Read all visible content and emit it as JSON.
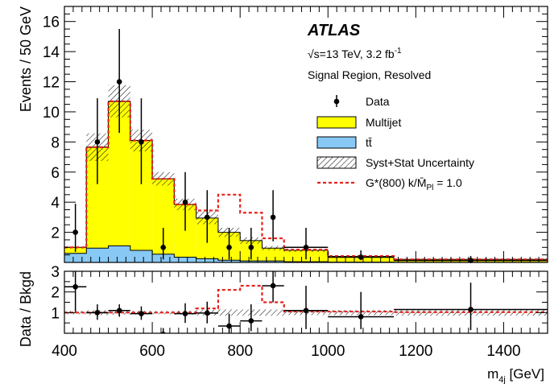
{
  "chart_data": [
    {
      "panel": "main",
      "type": "histogram",
      "ylabel": "Events / 50 GeV",
      "xlim": [
        400,
        1500
      ],
      "ylim": [
        0,
        17
      ],
      "y_ticks": [
        "2",
        "4",
        "6",
        "8",
        "10",
        "12",
        "14",
        "16"
      ],
      "x_ticks": [
        "400",
        "600",
        "800",
        "1000",
        "1200",
        "1400"
      ],
      "bin_edges": [
        400,
        450,
        500,
        550,
        600,
        650,
        700,
        750,
        800,
        850,
        900,
        1000,
        1150,
        1500
      ],
      "series": [
        {
          "name": "Multijet",
          "color": "#ffff00",
          "stacked": true,
          "values": [
            0.4,
            6.7,
            9.6,
            7.3,
            5.0,
            3.5,
            2.7,
            1.85,
            1.35,
            0.85,
            0.75,
            0.38,
            0.19
          ]
        },
        {
          "name": "tt̄",
          "color": "#87c8f5",
          "stacked": true,
          "values": [
            0.6,
            0.95,
            1.1,
            0.8,
            0.55,
            0.35,
            0.25,
            0.15,
            0.1,
            0.1,
            0.05,
            0.02,
            0.01
          ]
        },
        {
          "name": "G*(800) k/M̄Pl = 1.0",
          "color": "#e8221c",
          "style": "dashed",
          "values": [
            1.0,
            7.65,
            10.7,
            8.1,
            5.55,
            3.85,
            3.45,
            4.5,
            3.3,
            1.6,
            0.85,
            0.42,
            0.2
          ]
        }
      ],
      "data": {
        "name": "Data",
        "x": [
          425,
          475,
          525,
          575,
          625,
          675,
          725,
          775,
          825,
          875,
          950,
          1075,
          1325
        ],
        "y": [
          2,
          8,
          12,
          8,
          1,
          4,
          3,
          1,
          1,
          3,
          1,
          0.35,
          0.13
        ],
        "err_up": [
          1.9,
          2.9,
          3.5,
          2.9,
          1.3,
          2.0,
          1.8,
          1.3,
          1.3,
          1.8,
          1.3,
          0.45,
          0.3
        ],
        "err_down": [
          1.3,
          2.8,
          3.4,
          2.8,
          0.8,
          1.9,
          1.7,
          0.8,
          0.8,
          1.6,
          0.8,
          0.2,
          0.1
        ]
      },
      "uncertainty_rel": [
        0.08,
        0.12,
        0.1,
        0.09,
        0.08,
        0.1,
        0.14,
        0.15,
        0.15,
        0.15,
        0.12,
        0.12,
        0.15
      ],
      "legend": [
        "Data",
        "Multijet",
        "tt̄",
        "Syst+Stat Uncertainty",
        "G*(800) k/M̄Pl = 1.0"
      ],
      "legend_position": "top-right",
      "annotations": [
        "ATLAS",
        "√s=13 TeV, 3.2 fb-1",
        "Signal Region, Resolved"
      ]
    },
    {
      "panel": "ratio",
      "type": "scatter",
      "ylabel": "Data / Bkgd",
      "xlabel": "m4j [GeV]",
      "xlim": [
        400,
        1500
      ],
      "ylim": [
        0,
        3
      ],
      "y_ticks": [
        "1",
        "2",
        "3"
      ],
      "data": {
        "x": [
          425,
          475,
          525,
          575,
          625,
          675,
          725,
          775,
          825,
          875,
          950,
          1075,
          1325
        ],
        "x_halfwidth": [
          25,
          25,
          25,
          25,
          25,
          25,
          25,
          25,
          25,
          25,
          50,
          75,
          175
        ],
        "y": [
          2.25,
          1.0,
          1.1,
          0.95,
          -0.05,
          0.95,
          0.98,
          0.35,
          0.6,
          2.3,
          1.1,
          0.8,
          1.15
        ],
        "err_up": [
          1.6,
          0.4,
          0.3,
          0.35,
          0.3,
          0.5,
          0.55,
          0.6,
          0.8,
          0.9,
          1.2,
          1.2,
          1.3
        ],
        "err_down": [
          1.2,
          0.35,
          0.3,
          0.3,
          0.1,
          0.45,
          0.5,
          0.35,
          0.5,
          0.8,
          0.9,
          0.6,
          1.0
        ]
      },
      "signal_ratio": [
        1.0,
        1.0,
        1.0,
        1.0,
        1.0,
        1.0,
        1.2,
        2.1,
        2.3,
        1.5,
        1.05,
        1.05,
        1.02
      ],
      "uncertainty_rel": [
        0.08,
        0.12,
        0.1,
        0.09,
        0.08,
        0.1,
        0.14,
        0.15,
        0.15,
        0.15,
        0.12,
        0.12,
        0.15
      ]
    }
  ],
  "text": {
    "atlas": "ATLAS",
    "energy_prefix": "√s=13 TeV, 3.2 fb",
    "energy_sup": "-1",
    "region": "Signal Region, Resolved",
    "legend_data": "Data",
    "legend_multijet": "Multijet",
    "legend_ttbar": "tt̄",
    "legend_unc": "Syst+Stat Uncertainty",
    "legend_signal_a": "G*(800) k/",
    "legend_signal_m": "M̄",
    "legend_signal_sub": "Pl",
    "legend_signal_b": " = 1.0",
    "ylabel_main": "Events / 50 GeV",
    "ylabel_ratio": "Data / Bkgd",
    "xlabel_m": "m",
    "xlabel_sub": "4j",
    "xlabel_unit": " [GeV]"
  }
}
